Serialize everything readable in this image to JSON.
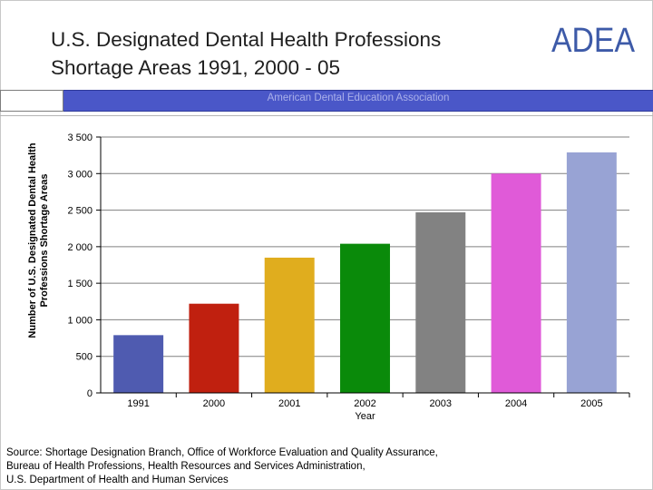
{
  "slide": {
    "title_line1": "U.S. Designated Dental Health Professions",
    "title_line2": "Shortage Areas 1991, 2000 - 05",
    "logo_text": "ADEA",
    "banner_text": "American Dental Education Association",
    "source_lines": [
      "Source: Shortage Designation Branch, Office of Workforce Evaluation and Quality Assurance,",
      "Bureau of Health Professions, Health Resources and Services Administration,",
      "U.S. Department of Health and Human Services"
    ]
  },
  "colors": {
    "banner": "#4a57c8",
    "logo": "#3d5aa8",
    "gridline": "#808080"
  },
  "chart_data": {
    "type": "bar",
    "title": "U.S. Designated Dental Health Professions Shortage Areas 1991, 2000 - 05",
    "xlabel": "Year",
    "ylabel": "Number of U.S. Designated Dental Health Professions Shortage Areas",
    "categories": [
      "1991",
      "2000",
      "2001",
      "2002",
      "2003",
      "2004",
      "2005"
    ],
    "values": [
      790,
      1220,
      1850,
      2040,
      2470,
      3000,
      3290
    ],
    "colors": [
      "#4f5bb0",
      "#c0200f",
      "#e0ad1e",
      "#0a8a0a",
      "#828282",
      "#e05ad8",
      "#98a3d4"
    ],
    "ylim": [
      0,
      3500
    ],
    "yticks": [
      0,
      500,
      1000,
      1500,
      2000,
      2500,
      3000,
      3500
    ],
    "ytick_labels": [
      "0",
      "500",
      "1 000",
      "1 500",
      "2 000",
      "2 500",
      "3 000",
      "3 500"
    ],
    "grid": true,
    "legend": "none"
  }
}
